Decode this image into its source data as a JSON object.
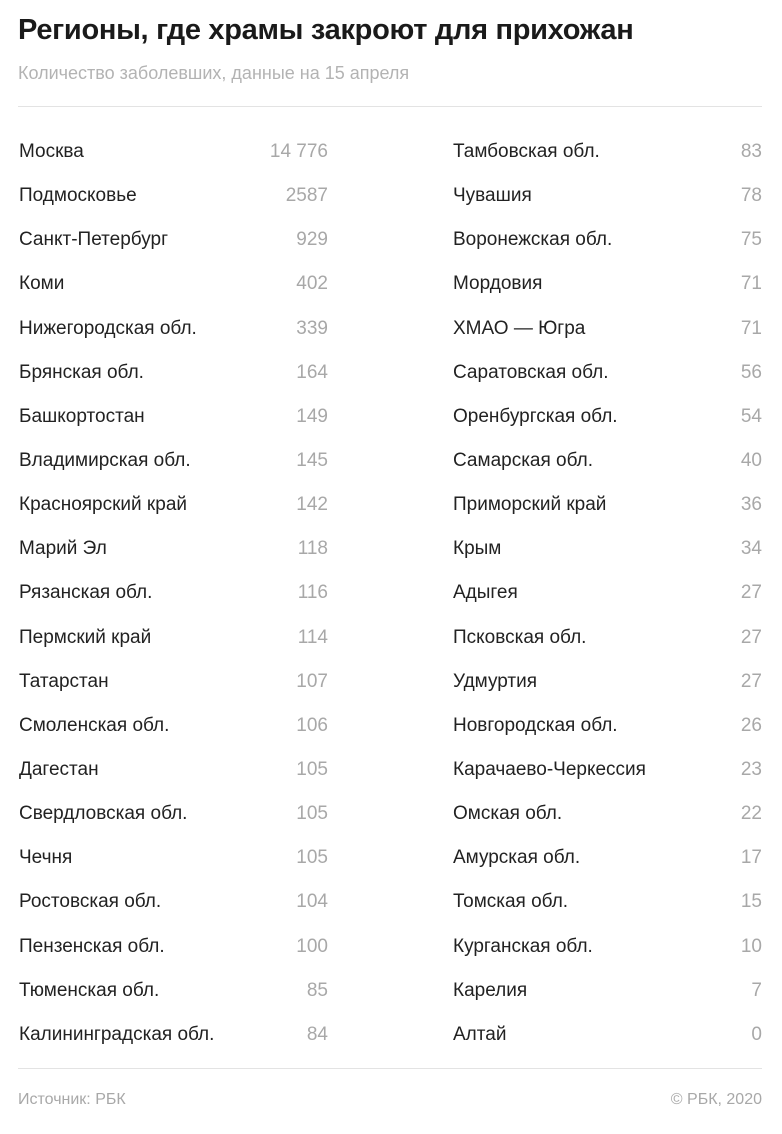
{
  "header": {
    "title": "Регионы, где храмы закроют для прихожан",
    "subtitle": "Количество заболевших, данные на 15 апреля"
  },
  "chart_data": {
    "type": "table",
    "title": "Регионы, где храмы закроют для прихожан",
    "subtitle": "Количество заболевших, данные на 15 апреля",
    "rows": [
      {
        "region": "Москва",
        "value": "14 776"
      },
      {
        "region": "Подмосковье",
        "value": "2587"
      },
      {
        "region": "Санкт-Петербург",
        "value": "929"
      },
      {
        "region": "Коми",
        "value": "402"
      },
      {
        "region": "Нижегородская обл.",
        "value": "339"
      },
      {
        "region": "Брянская обл.",
        "value": "164"
      },
      {
        "region": "Башкортостан",
        "value": "149"
      },
      {
        "region": "Владимирская обл.",
        "value": "145"
      },
      {
        "region": "Красноярский край",
        "value": "142"
      },
      {
        "region": "Марий Эл",
        "value": "118"
      },
      {
        "region": "Рязанская обл.",
        "value": "116"
      },
      {
        "region": "Пермский край",
        "value": "114"
      },
      {
        "region": "Татарстан",
        "value": "107"
      },
      {
        "region": "Смоленская обл.",
        "value": "106"
      },
      {
        "region": "Дагестан",
        "value": "105"
      },
      {
        "region": "Свердловская обл.",
        "value": "105"
      },
      {
        "region": "Чечня",
        "value": "105"
      },
      {
        "region": "Ростовская обл.",
        "value": "104"
      },
      {
        "region": "Пензенская обл.",
        "value": "100"
      },
      {
        "region": "Тюменская обл.",
        "value": "85"
      },
      {
        "region": "Калининградская обл.",
        "value": "84"
      },
      {
        "region": "Тамбовская обл.",
        "value": "83"
      },
      {
        "region": "Чувашия",
        "value": "78"
      },
      {
        "region": "Воронежская обл.",
        "value": "75"
      },
      {
        "region": "Мордовия",
        "value": "71"
      },
      {
        "region": "ХМАО — Югра",
        "value": "71"
      },
      {
        "region": "Саратовская обл.",
        "value": "56"
      },
      {
        "region": "Оренбургская обл.",
        "value": "54"
      },
      {
        "region": "Самарская обл.",
        "value": "40"
      },
      {
        "region": "Приморский край",
        "value": "36"
      },
      {
        "region": "Крым",
        "value": "34"
      },
      {
        "region": "Адыгея",
        "value": "27"
      },
      {
        "region": "Псковская обл.",
        "value": "27"
      },
      {
        "region": "Удмуртия",
        "value": "27"
      },
      {
        "region": "Новгородская обл.",
        "value": "26"
      },
      {
        "region": "Карачаево-Черкессия",
        "value": "23"
      },
      {
        "region": "Омская обл.",
        "value": "22"
      },
      {
        "region": "Амурская обл.",
        "value": "17"
      },
      {
        "region": "Томская обл.",
        "value": "15"
      },
      {
        "region": "Курганская обл.",
        "value": "10"
      },
      {
        "region": "Карелия",
        "value": "7"
      },
      {
        "region": "Алтай",
        "value": "0"
      }
    ]
  },
  "footer": {
    "source": "Источник: РБК",
    "copyright": "© РБК, 2020"
  }
}
